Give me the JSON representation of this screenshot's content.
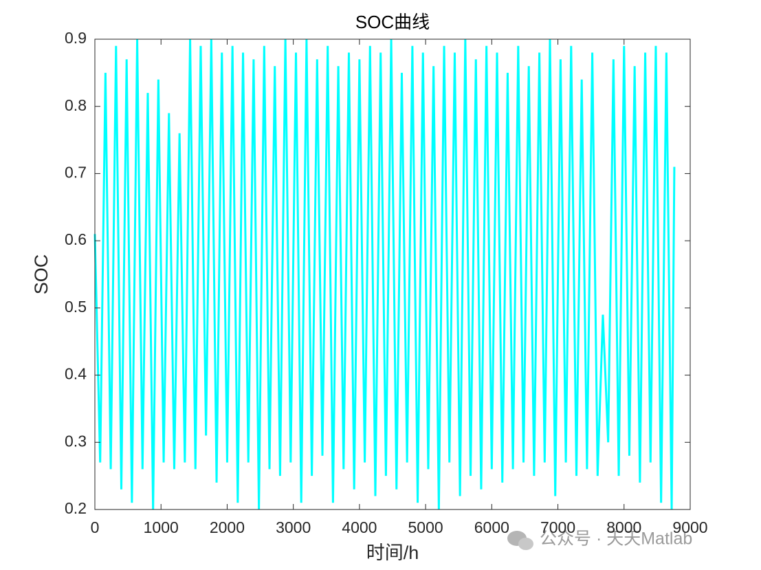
{
  "chart_data": {
    "type": "line",
    "title": "SOC曲线",
    "xlabel": "时间/h",
    "ylabel": "SOC",
    "watermark": "公众号 · 天天Matlab",
    "xlim": [
      0,
      9000
    ],
    "xticks": [
      0,
      1000,
      2000,
      3000,
      4000,
      5000,
      6000,
      7000,
      8000,
      9000
    ],
    "ylim": [
      0.2,
      0.9
    ],
    "yticks": [
      0.2,
      0.3,
      0.4,
      0.5,
      0.6,
      0.7,
      0.8,
      0.9
    ],
    "x": [
      0,
      80,
      160,
      240,
      320,
      400,
      480,
      560,
      640,
      720,
      800,
      880,
      960,
      1040,
      1120,
      1200,
      1280,
      1360,
      1440,
      1520,
      1600,
      1680,
      1760,
      1840,
      1920,
      2000,
      2080,
      2160,
      2240,
      2320,
      2400,
      2480,
      2560,
      2640,
      2720,
      2800,
      2880,
      2960,
      3040,
      3120,
      3200,
      3280,
      3360,
      3440,
      3520,
      3600,
      3680,
      3760,
      3840,
      3920,
      4000,
      4080,
      4160,
      4240,
      4320,
      4400,
      4480,
      4560,
      4640,
      4720,
      4800,
      4880,
      4960,
      5040,
      5120,
      5200,
      5280,
      5360,
      5440,
      5520,
      5600,
      5680,
      5760,
      5840,
      5920,
      6000,
      6080,
      6160,
      6240,
      6320,
      6400,
      6480,
      6560,
      6640,
      6720,
      6800,
      6880,
      6960,
      7040,
      7120,
      7200,
      7280,
      7360,
      7440,
      7520,
      7600,
      7680,
      7760,
      7840,
      7920,
      8000,
      8080,
      8160,
      8240,
      8320,
      8400,
      8480,
      8560,
      8640,
      8720,
      8760
    ],
    "series": [
      {
        "name": "SOC",
        "color": "#00ffff",
        "values": [
          0.61,
          0.27,
          0.85,
          0.26,
          0.89,
          0.23,
          0.87,
          0.21,
          0.9,
          0.26,
          0.82,
          0.2,
          0.84,
          0.27,
          0.79,
          0.26,
          0.76,
          0.27,
          0.9,
          0.26,
          0.89,
          0.31,
          0.9,
          0.24,
          0.88,
          0.27,
          0.89,
          0.21,
          0.88,
          0.27,
          0.87,
          0.2,
          0.89,
          0.26,
          0.86,
          0.25,
          0.9,
          0.27,
          0.88,
          0.21,
          0.9,
          0.25,
          0.87,
          0.28,
          0.89,
          0.21,
          0.86,
          0.26,
          0.88,
          0.23,
          0.87,
          0.27,
          0.89,
          0.22,
          0.88,
          0.25,
          0.9,
          0.23,
          0.85,
          0.27,
          0.89,
          0.21,
          0.88,
          0.26,
          0.86,
          0.2,
          0.89,
          0.27,
          0.88,
          0.22,
          0.9,
          0.25,
          0.87,
          0.23,
          0.89,
          0.26,
          0.88,
          0.24,
          0.85,
          0.26,
          0.89,
          0.27,
          0.86,
          0.25,
          0.88,
          0.27,
          0.9,
          0.22,
          0.87,
          0.27,
          0.89,
          0.25,
          0.84,
          0.26,
          0.88,
          0.25,
          0.49,
          0.3,
          0.87,
          0.25,
          0.89,
          0.28,
          0.86,
          0.24,
          0.88,
          0.27,
          0.89,
          0.21,
          0.88,
          0.2,
          0.71
        ]
      }
    ]
  }
}
